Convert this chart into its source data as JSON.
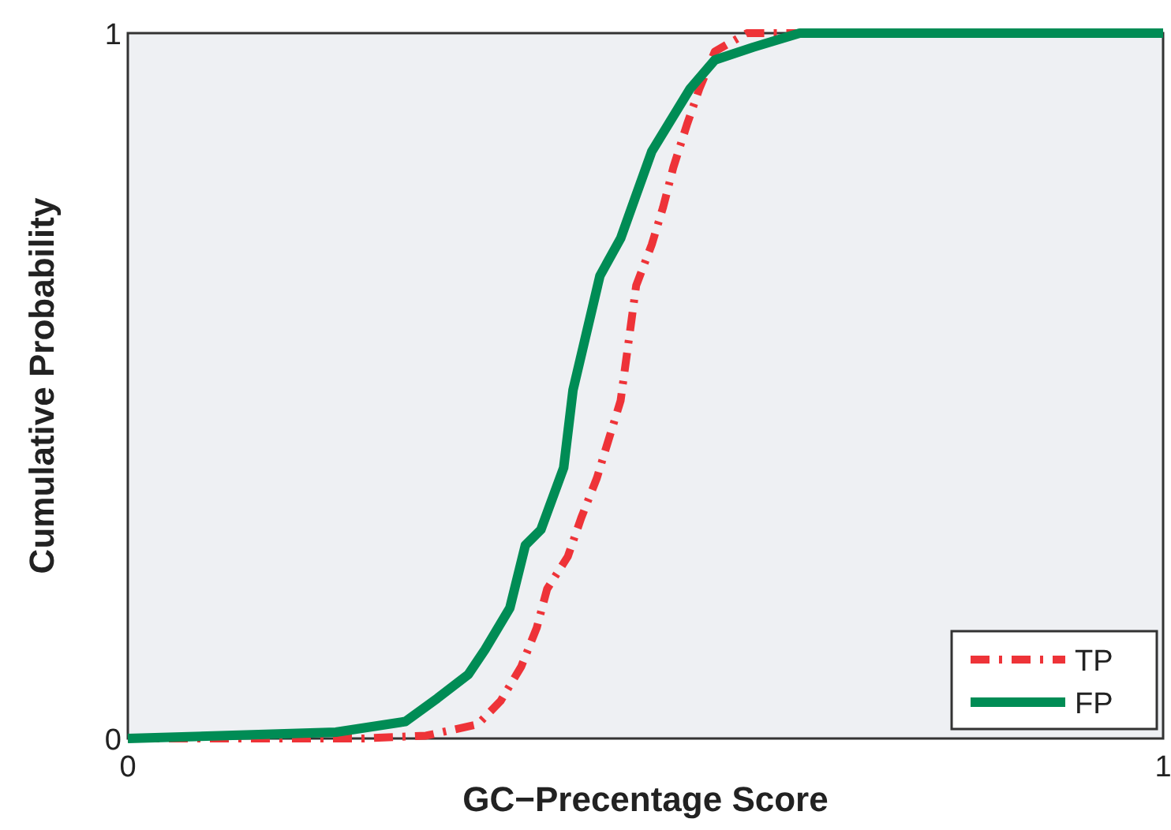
{
  "chart_data": {
    "type": "line",
    "xlabel": "GC−Precentage Score",
    "ylabel": "Cumulative Probability",
    "xlim": [
      0,
      1
    ],
    "ylim": [
      0,
      1
    ],
    "xticks": [
      0,
      1
    ],
    "yticks": [
      0,
      1
    ],
    "legend": "bottom right",
    "grid": false,
    "series": [
      {
        "name": "TP",
        "color": "#ee3338",
        "line_style": "dashed",
        "x": [
          0,
          0.227,
          0.288,
          0.338,
          0.36,
          0.38,
          0.395,
          0.405,
          0.425,
          0.438,
          0.453,
          0.476,
          0.491,
          0.506,
          0.517,
          0.527,
          0.54,
          0.552,
          0.567,
          0.598,
          1
        ],
        "values": [
          0,
          0,
          0.004,
          0.02,
          0.053,
          0.102,
          0.157,
          0.212,
          0.258,
          0.313,
          0.369,
          0.479,
          0.642,
          0.7,
          0.753,
          0.81,
          0.87,
          0.921,
          0.974,
          1,
          1
        ]
      },
      {
        "name": "FP",
        "color": "#008c55",
        "line_style": "solid",
        "x": [
          0,
          0.201,
          0.268,
          0.299,
          0.329,
          0.345,
          0.369,
          0.384,
          0.399,
          0.421,
          0.43,
          0.456,
          0.476,
          0.506,
          0.543,
          0.567,
          0.604,
          0.649,
          1
        ],
        "values": [
          0,
          0.009,
          0.024,
          0.057,
          0.091,
          0.126,
          0.185,
          0.274,
          0.296,
          0.384,
          0.494,
          0.656,
          0.709,
          0.832,
          0.921,
          0.962,
          0.98,
          1,
          1
        ]
      }
    ]
  }
}
